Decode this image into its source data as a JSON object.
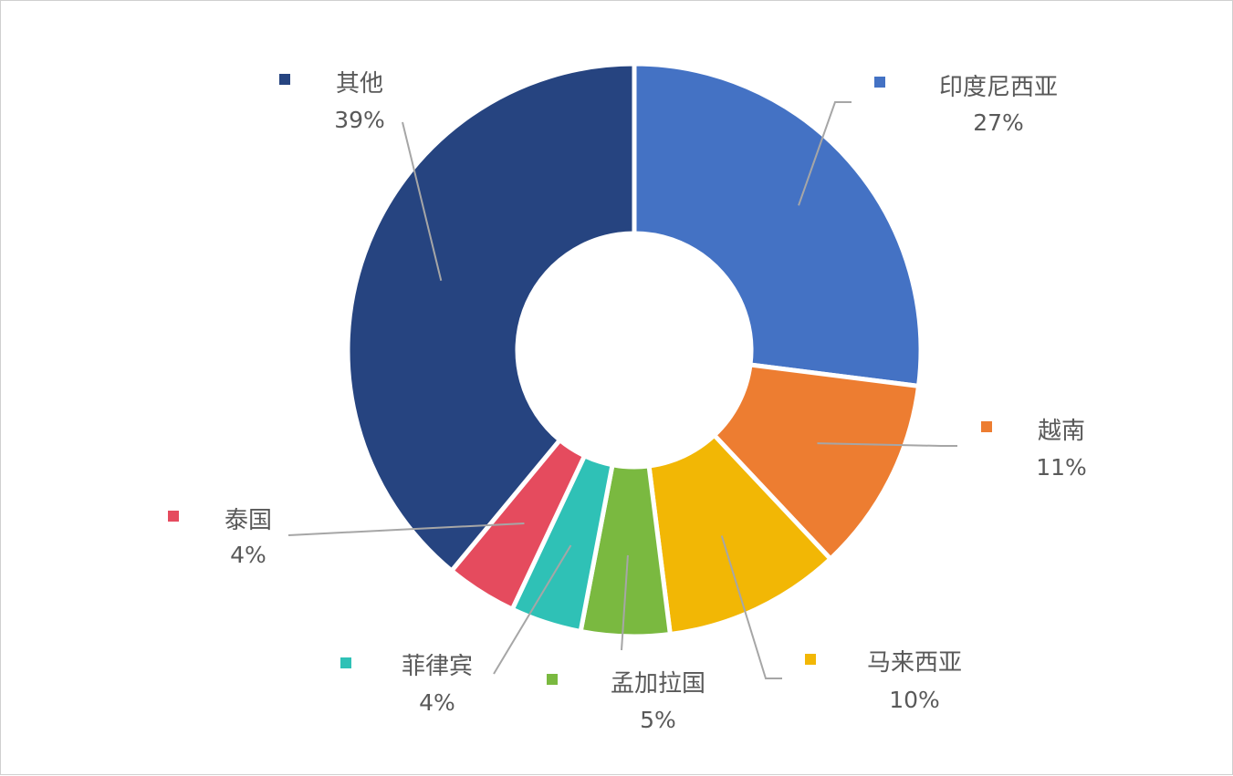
{
  "chart_data": {
    "type": "pie",
    "donut": true,
    "slices": [
      {
        "name": "印度尼西亚",
        "value": 27,
        "label": "27%",
        "color": "#4472C4"
      },
      {
        "name": "越南",
        "value": 11,
        "label": "11%",
        "color": "#ED7D31"
      },
      {
        "name": "马来西亚",
        "value": 10,
        "label": "10%",
        "color": "#F2B705"
      },
      {
        "name": "孟加拉国",
        "value": 5,
        "label": "5%",
        "color": "#7AB940"
      },
      {
        "name": "菲律宾",
        "value": 4,
        "label": "4%",
        "color": "#2FC1B6"
      },
      {
        "name": "泰国",
        "value": 4,
        "label": "4%",
        "color": "#E54B5E"
      },
      {
        "name": "其他",
        "value": 39,
        "label": "39%",
        "color": "#264480"
      }
    ],
    "leader_line_color": "#A6A6A6",
    "label_color": "#595959"
  }
}
